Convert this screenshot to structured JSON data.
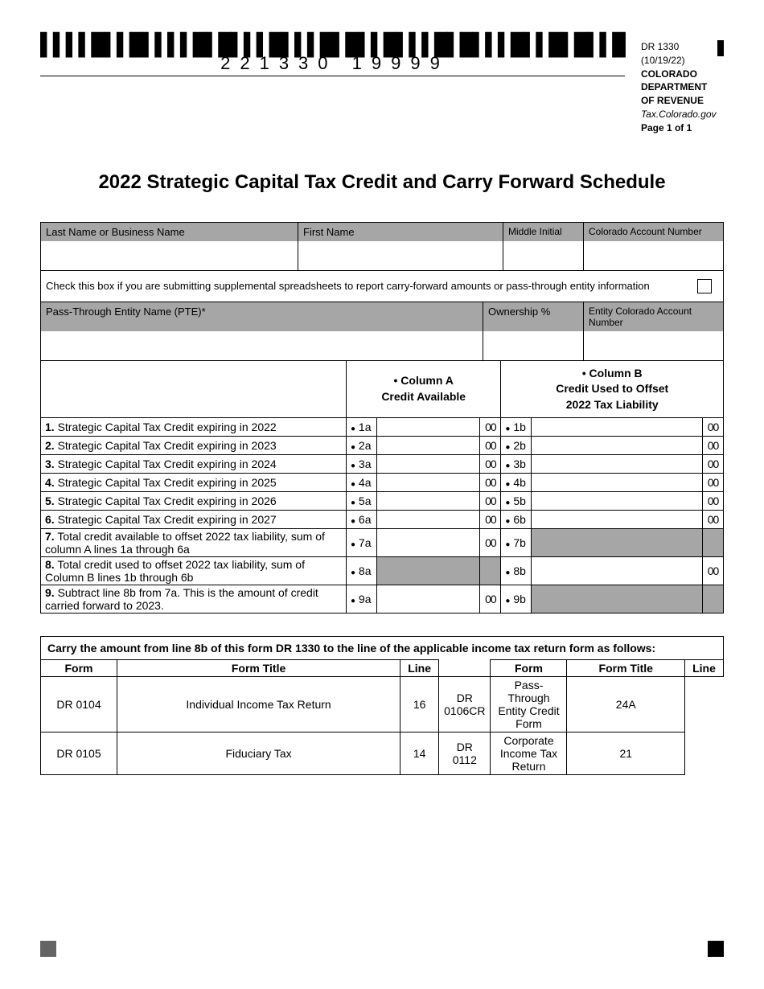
{
  "header": {
    "barcode_number": "221330 19999",
    "form_code": "DR 1330 (10/19/22)",
    "dept": "COLORADO DEPARTMENT OF REVENUE",
    "site": "Tax.Colorado.gov",
    "page": "Page 1 of 1"
  },
  "title": "2022 Strategic Capital Tax Credit and Carry Forward Schedule",
  "labels": {
    "last_name": "Last Name or Business Name",
    "first_name": "First Name",
    "mi": "Middle Initial",
    "acct": "Colorado Account Number",
    "check_text": "Check this box if you are submitting supplemental spreadsheets to report carry-forward amounts or pass-through entity information",
    "pte": "Pass-Through Entity Name (PTE)*",
    "own": "Ownership %",
    "entity_acct": "Entity Colorado Account Number",
    "col_a": "• Column A\nCredit Available",
    "col_b": "• Column B\nCredit Used to Offset\n2022 Tax Liability"
  },
  "rows": [
    {
      "n": "1.",
      "desc": "Strategic Capital Tax Credit expiring in 2022",
      "a": "1a",
      "b": "1b",
      "za": "00",
      "zb": "00",
      "ga": false,
      "gb": false
    },
    {
      "n": "2.",
      "desc": "Strategic Capital Tax Credit expiring in 2023",
      "a": "2a",
      "b": "2b",
      "za": "00",
      "zb": "00",
      "ga": false,
      "gb": false
    },
    {
      "n": "3.",
      "desc": "Strategic Capital Tax Credit expiring in 2024",
      "a": "3a",
      "b": "3b",
      "za": "00",
      "zb": "00",
      "ga": false,
      "gb": false
    },
    {
      "n": "4.",
      "desc": "Strategic Capital Tax Credit expiring in 2025",
      "a": "4a",
      "b": "4b",
      "za": "00",
      "zb": "00",
      "ga": false,
      "gb": false
    },
    {
      "n": "5.",
      "desc": "Strategic Capital Tax Credit expiring in 2026",
      "a": "5a",
      "b": "5b",
      "za": "00",
      "zb": "00",
      "ga": false,
      "gb": false
    },
    {
      "n": "6.",
      "desc": "Strategic Capital Tax Credit expiring in 2027",
      "a": "6a",
      "b": "6b",
      "za": "00",
      "zb": "00",
      "ga": false,
      "gb": false
    },
    {
      "n": "7.",
      "desc": "Total credit available to offset 2022 tax liability, sum of column A lines 1a through 6a",
      "a": "7a",
      "b": "7b",
      "za": "00",
      "zb": "",
      "ga": false,
      "gb": true
    },
    {
      "n": "8.",
      "desc": "Total credit used to offset 2022 tax liability, sum of Column B lines 1b through 6b",
      "a": "8a",
      "b": "8b",
      "za": "",
      "zb": "00",
      "ga": true,
      "gb": false
    },
    {
      "n": "9.",
      "desc": "Subtract line 8b from 7a. This is the amount of credit carried forward to 2023.",
      "a": "9a",
      "b": "9b",
      "za": "00",
      "zb": "",
      "ga": false,
      "gb": true
    }
  ],
  "carry": {
    "title": "Carry the amount from line 8b of this form DR 1330 to the line of the applicable income tax return form as follows:",
    "headers": [
      "Form",
      "Form Title",
      "Line",
      "Form",
      "Form Title",
      "Line"
    ],
    "rows": [
      [
        "DR 0104",
        "Individual Income Tax Return",
        "16",
        "DR 0106CR",
        "Pass-Through Entity Credit Form",
        "24A"
      ],
      [
        "DR 0105",
        "Fiduciary Tax",
        "14",
        "DR 0112",
        "Corporate Income Tax Return",
        "21"
      ]
    ]
  }
}
